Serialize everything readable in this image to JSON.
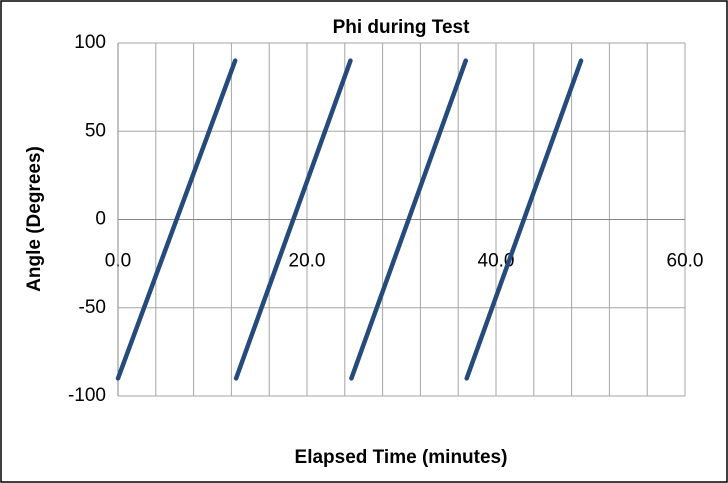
{
  "chart_data": {
    "type": "line",
    "title": "Phi during Test",
    "x_label": "Elapsed Time (minutes)",
    "y_label": "Angle (Degrees)",
    "x": [
      0,
      12.4,
      12.45,
      12.5,
      24.6,
      24.65,
      24.7,
      36.8,
      36.85,
      36.9,
      49.0
    ],
    "series": [
      {
        "name": "Phi",
        "color": "#254a7c",
        "values": [
          -90,
          90,
          null,
          -90,
          90,
          null,
          -90,
          90,
          null,
          -90,
          90
        ]
      }
    ],
    "xlim": [
      0,
      60
    ],
    "ylim": [
      -100,
      100
    ],
    "xticks": [
      {
        "value": 0,
        "label": "0.0"
      },
      {
        "value": 20,
        "label": "20.0"
      },
      {
        "value": 40,
        "label": "40.0"
      },
      {
        "value": 60,
        "label": "60.0"
      }
    ],
    "xminorticks": [
      4,
      8,
      12,
      16,
      24,
      28,
      32,
      36,
      44,
      48,
      52,
      56
    ],
    "yticks": [
      -100,
      -50,
      0,
      50,
      100
    ],
    "grid": true
  }
}
